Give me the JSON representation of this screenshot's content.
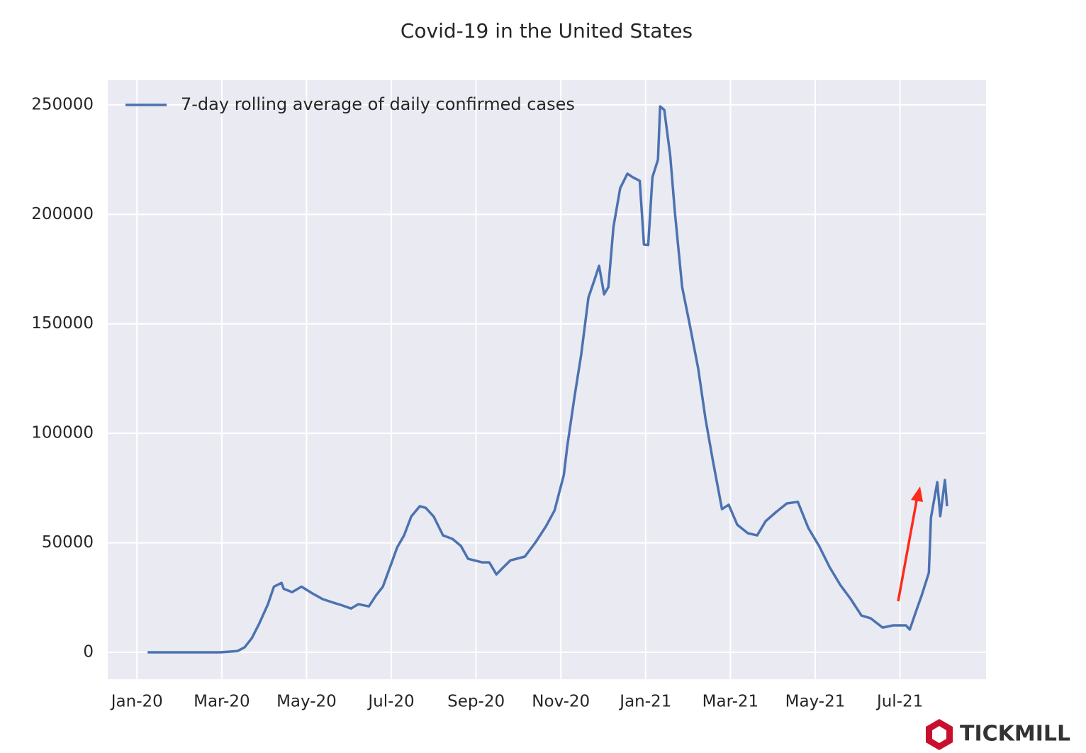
{
  "chart_data": {
    "type": "line",
    "title": "Covid-19 in the United States",
    "watermark": "TICKMILL",
    "legend": "upper left",
    "grid": true,
    "x": [
      0.25,
      1.96,
      2.37,
      2.54,
      2.71,
      2.88,
      3.09,
      3.23,
      3.41,
      3.46,
      3.66,
      3.88,
      4.13,
      4.38,
      4.63,
      4.8,
      5.05,
      5.22,
      5.47,
      5.64,
      5.8,
      5.97,
      6.14,
      6.3,
      6.47,
      6.67,
      6.81,
      7.0,
      7.22,
      7.44,
      7.64,
      7.81,
      8.14,
      8.31,
      8.48,
      8.65,
      8.81,
      9.15,
      9.4,
      9.65,
      9.85,
      10.07,
      10.15,
      10.32,
      10.48,
      10.65,
      10.79,
      10.9,
      11.02,
      11.12,
      11.24,
      11.4,
      11.57,
      11.69,
      11.86,
      11.96,
      12.06,
      12.16,
      12.29,
      12.34,
      12.44,
      12.58,
      12.69,
      12.86,
      13.03,
      13.24,
      13.41,
      13.58,
      13.8,
      13.96,
      14.16,
      14.41,
      14.63,
      14.83,
      15.08,
      15.33,
      15.59,
      15.84,
      16.09,
      16.34,
      16.59,
      16.84,
      17.09,
      17.31,
      17.59,
      17.84,
      18.14,
      18.23,
      18.38,
      18.51,
      18.68,
      18.73,
      18.88,
      18.95,
      19.06,
      19.11
    ],
    "series": [
      {
        "name": "7-day rolling average of daily confirmed cases",
        "color": "#4c72b0",
        "values": [
          0,
          0,
          600,
          2300,
          6500,
          13000,
          22000,
          30000,
          31700,
          29000,
          27500,
          30000,
          27000,
          24300,
          22700,
          21700,
          20000,
          22000,
          21000,
          26000,
          30000,
          39000,
          48000,
          53400,
          62000,
          66700,
          66000,
          62000,
          53400,
          51800,
          48600,
          42700,
          41100,
          41100,
          35600,
          39000,
          42000,
          43700,
          50200,
          57600,
          64800,
          81000,
          94000,
          116600,
          136000,
          162000,
          170000,
          176500,
          163500,
          166800,
          194300,
          212000,
          218600,
          217000,
          215300,
          186200,
          186000,
          217000,
          225000,
          249300,
          247700,
          226700,
          200800,
          166800,
          150600,
          129500,
          106900,
          88100,
          65400,
          67400,
          58300,
          54400,
          53400,
          59900,
          64100,
          68000,
          68700,
          56700,
          48600,
          38900,
          30800,
          24300,
          16800,
          15500,
          11300,
          12300,
          12300,
          10400,
          18800,
          25900,
          36300,
          61500,
          77700,
          62200,
          78700,
          66700
        ]
      }
    ],
    "xlim": [
      -0.69,
      20.03
    ],
    "xticks": [
      {
        "value": 0,
        "label": "Jan-20"
      },
      {
        "value": 2,
        "label": "Mar-20"
      },
      {
        "value": 4,
        "label": "May-20"
      },
      {
        "value": 6,
        "label": "Jul-20"
      },
      {
        "value": 8,
        "label": "Sep-20"
      },
      {
        "value": 10,
        "label": "Nov-20"
      },
      {
        "value": 12,
        "label": "Jan-21"
      },
      {
        "value": 14,
        "label": "Mar-21"
      },
      {
        "value": 16,
        "label": "May-21"
      },
      {
        "value": 18,
        "label": "Jul-21"
      }
    ],
    "ylim": [
      -12300,
      261300
    ],
    "yticks": [
      0,
      50000,
      100000,
      150000,
      200000,
      250000
    ]
  }
}
